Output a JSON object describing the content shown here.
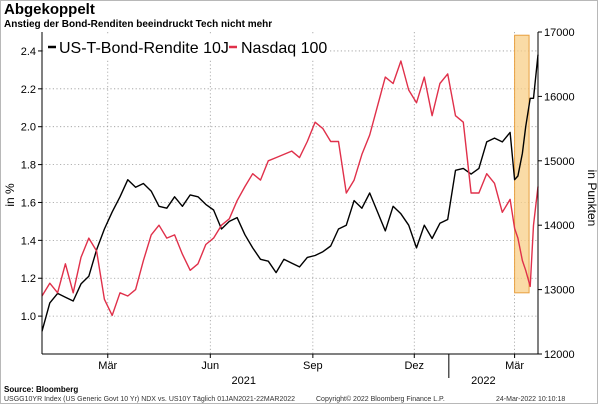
{
  "title": "Abgekoppelt",
  "subtitle": "Anstieg der Bond-Renditen beeindruckt Tech nicht mehr",
  "source": "Source: Bloomberg",
  "footer": {
    "left": "USGG10YR Index (US Generic Govt 10 Yr) NDX vs. US10Y  Täglich 01JAN2021-22MAR2022",
    "middle": "Copyright© 2022 Bloomberg Finance L.P.",
    "right": "24-Mar-2022 10:10:18"
  },
  "colors": {
    "bond": "#000000",
    "nasdaq": "#e0304a",
    "highlight_fill": "#f8cf88",
    "highlight_stroke": "#e8a040",
    "grid": "#9a9a9a"
  },
  "chart_data": {
    "type": "line",
    "title": "Abgekoppelt",
    "subtitle": "Anstieg der Bond-Renditen beeindruckt Tech nicht mehr",
    "x_range": [
      "2021-01-01",
      "2022-03-22"
    ],
    "x_month_labels": [
      {
        "label": "Mär",
        "date": "2021-03-01"
      },
      {
        "label": "Jun",
        "date": "2021-06-01"
      },
      {
        "label": "Sep",
        "date": "2021-09-01"
      },
      {
        "label": "Dez",
        "date": "2021-12-01"
      },
      {
        "label": "Mär",
        "date": "2022-03-01"
      }
    ],
    "x_year_labels": [
      {
        "label": "2021",
        "date": "2021-07-01"
      },
      {
        "label": "2022",
        "date": "2022-02-01"
      }
    ],
    "year_divider": "2022-01-01",
    "left_axis": {
      "label": "in %",
      "ylim": [
        0.8,
        2.5
      ],
      "ticks": [
        1.0,
        1.2,
        1.4,
        1.6,
        1.8,
        2.0,
        2.2,
        2.4
      ]
    },
    "right_axis": {
      "label": "in Punkten",
      "ylim": [
        12000,
        17000
      ],
      "ticks": [
        12000,
        13000,
        14000,
        15000,
        16000,
        17000
      ]
    },
    "legend_placement": "top-left",
    "grid": true,
    "highlight": {
      "x_start": "2022-03-01",
      "x_end": "2022-03-14",
      "y_right_min": 12950,
      "y_right_max": 16950
    },
    "series": [
      {
        "name": "US-T-Bond-Rendite 10J",
        "axis": "left",
        "points": [
          [
            "2021-01-01",
            0.92
          ],
          [
            "2021-01-08",
            1.07
          ],
          [
            "2021-01-15",
            1.12
          ],
          [
            "2021-01-22",
            1.1
          ],
          [
            "2021-01-29",
            1.08
          ],
          [
            "2021-02-05",
            1.17
          ],
          [
            "2021-02-12",
            1.21
          ],
          [
            "2021-02-19",
            1.35
          ],
          [
            "2021-02-26",
            1.46
          ],
          [
            "2021-03-05",
            1.55
          ],
          [
            "2021-03-12",
            1.63
          ],
          [
            "2021-03-19",
            1.72
          ],
          [
            "2021-03-26",
            1.68
          ],
          [
            "2021-04-02",
            1.7
          ],
          [
            "2021-04-09",
            1.66
          ],
          [
            "2021-04-16",
            1.58
          ],
          [
            "2021-04-23",
            1.57
          ],
          [
            "2021-04-30",
            1.63
          ],
          [
            "2021-05-07",
            1.58
          ],
          [
            "2021-05-14",
            1.64
          ],
          [
            "2021-05-21",
            1.63
          ],
          [
            "2021-05-28",
            1.59
          ],
          [
            "2021-06-04",
            1.56
          ],
          [
            "2021-06-11",
            1.46
          ],
          [
            "2021-06-18",
            1.5
          ],
          [
            "2021-06-25",
            1.52
          ],
          [
            "2021-07-02",
            1.43
          ],
          [
            "2021-07-09",
            1.36
          ],
          [
            "2021-07-16",
            1.3
          ],
          [
            "2021-07-23",
            1.29
          ],
          [
            "2021-07-30",
            1.23
          ],
          [
            "2021-08-06",
            1.3
          ],
          [
            "2021-08-13",
            1.28
          ],
          [
            "2021-08-20",
            1.26
          ],
          [
            "2021-08-27",
            1.31
          ],
          [
            "2021-09-03",
            1.32
          ],
          [
            "2021-09-10",
            1.34
          ],
          [
            "2021-09-17",
            1.37
          ],
          [
            "2021-09-24",
            1.46
          ],
          [
            "2021-10-01",
            1.48
          ],
          [
            "2021-10-08",
            1.61
          ],
          [
            "2021-10-15",
            1.57
          ],
          [
            "2021-10-22",
            1.65
          ],
          [
            "2021-10-29",
            1.55
          ],
          [
            "2021-11-05",
            1.45
          ],
          [
            "2021-11-12",
            1.58
          ],
          [
            "2021-11-19",
            1.54
          ],
          [
            "2021-11-26",
            1.48
          ],
          [
            "2021-12-03",
            1.36
          ],
          [
            "2021-12-10",
            1.48
          ],
          [
            "2021-12-17",
            1.41
          ],
          [
            "2021-12-24",
            1.49
          ],
          [
            "2021-12-31",
            1.51
          ],
          [
            "2022-01-07",
            1.77
          ],
          [
            "2022-01-14",
            1.78
          ],
          [
            "2022-01-21",
            1.75
          ],
          [
            "2022-01-28",
            1.78
          ],
          [
            "2022-02-04",
            1.92
          ],
          [
            "2022-02-11",
            1.94
          ],
          [
            "2022-02-18",
            1.92
          ],
          [
            "2022-02-25",
            1.97
          ],
          [
            "2022-03-01",
            1.72
          ],
          [
            "2022-03-04",
            1.74
          ],
          [
            "2022-03-08",
            1.86
          ],
          [
            "2022-03-11",
            2.0
          ],
          [
            "2022-03-15",
            2.15
          ],
          [
            "2022-03-18",
            2.15
          ],
          [
            "2022-03-22",
            2.38
          ]
        ]
      },
      {
        "name": "Nasdaq 100",
        "axis": "right",
        "points": [
          [
            "2021-01-01",
            12900
          ],
          [
            "2021-01-08",
            13100
          ],
          [
            "2021-01-15",
            12950
          ],
          [
            "2021-01-22",
            13400
          ],
          [
            "2021-01-29",
            12950
          ],
          [
            "2021-02-05",
            13500
          ],
          [
            "2021-02-12",
            13800
          ],
          [
            "2021-02-19",
            13600
          ],
          [
            "2021-02-26",
            12850
          ],
          [
            "2021-03-05",
            12600
          ],
          [
            "2021-03-12",
            12950
          ],
          [
            "2021-03-19",
            12900
          ],
          [
            "2021-03-26",
            13000
          ],
          [
            "2021-04-02",
            13450
          ],
          [
            "2021-04-09",
            13850
          ],
          [
            "2021-04-16",
            14000
          ],
          [
            "2021-04-23",
            13800
          ],
          [
            "2021-04-30",
            13850
          ],
          [
            "2021-05-07",
            13550
          ],
          [
            "2021-05-14",
            13300
          ],
          [
            "2021-05-21",
            13400
          ],
          [
            "2021-05-28",
            13700
          ],
          [
            "2021-06-04",
            13800
          ],
          [
            "2021-06-11",
            14000
          ],
          [
            "2021-06-18",
            14100
          ],
          [
            "2021-06-25",
            14380
          ],
          [
            "2021-07-02",
            14600
          ],
          [
            "2021-07-09",
            14800
          ],
          [
            "2021-07-16",
            14700
          ],
          [
            "2021-07-23",
            15000
          ],
          [
            "2021-07-30",
            15050
          ],
          [
            "2021-08-06",
            15100
          ],
          [
            "2021-08-13",
            15150
          ],
          [
            "2021-08-20",
            15050
          ],
          [
            "2021-08-27",
            15300
          ],
          [
            "2021-09-03",
            15600
          ],
          [
            "2021-09-10",
            15500
          ],
          [
            "2021-09-17",
            15300
          ],
          [
            "2021-09-24",
            15300
          ],
          [
            "2021-10-01",
            14500
          ],
          [
            "2021-10-08",
            14700
          ],
          [
            "2021-10-15",
            15100
          ],
          [
            "2021-10-22",
            15400
          ],
          [
            "2021-10-29",
            15850
          ],
          [
            "2021-11-05",
            16300
          ],
          [
            "2021-11-12",
            16200
          ],
          [
            "2021-11-19",
            16550
          ],
          [
            "2021-11-26",
            16100
          ],
          [
            "2021-12-03",
            15900
          ],
          [
            "2021-12-10",
            16300
          ],
          [
            "2021-12-17",
            15700
          ],
          [
            "2021-12-24",
            16200
          ],
          [
            "2021-12-31",
            16350
          ],
          [
            "2022-01-07",
            15700
          ],
          [
            "2022-01-14",
            15600
          ],
          [
            "2022-01-21",
            14500
          ],
          [
            "2022-01-28",
            14500
          ],
          [
            "2022-02-04",
            14800
          ],
          [
            "2022-02-11",
            14650
          ],
          [
            "2022-02-18",
            14200
          ],
          [
            "2022-02-25",
            14400
          ],
          [
            "2022-03-01",
            13950
          ],
          [
            "2022-03-04",
            13800
          ],
          [
            "2022-03-08",
            13450
          ],
          [
            "2022-03-11",
            13300
          ],
          [
            "2022-03-15",
            13050
          ],
          [
            "2022-03-18",
            14000
          ],
          [
            "2022-03-22",
            14600
          ]
        ]
      }
    ]
  }
}
